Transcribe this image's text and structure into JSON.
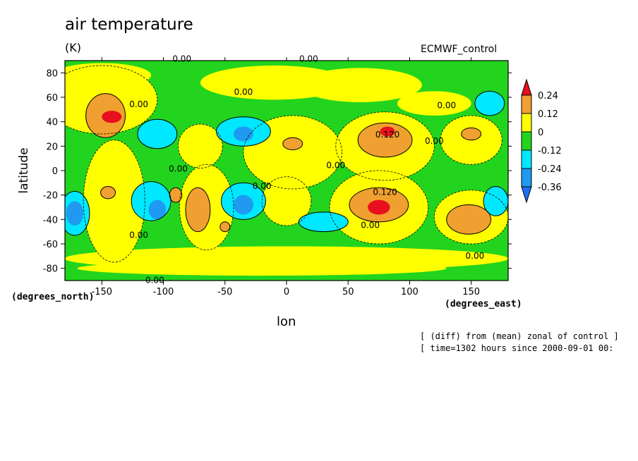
{
  "chart_data": {
    "type": "heatmap",
    "title": "air temperature",
    "units": "(K)",
    "model_label": "ECMWF_control",
    "xlabel": "lon",
    "xunits": "(degrees_east)",
    "ylabel": "latitude",
    "yunits": "(degrees_north)",
    "xlim": [
      -180,
      180
    ],
    "ylim": [
      -90,
      90
    ],
    "x_ticks": [
      "-150",
      "-100",
      "-50",
      "0",
      "50",
      "100",
      "150"
    ],
    "x_tick_values": [
      -150,
      -100,
      -50,
      0,
      50,
      100,
      150
    ],
    "y_ticks": [
      "80",
      "60",
      "40",
      "20",
      "0",
      "-20",
      "-40",
      "-60",
      "-80"
    ],
    "y_tick_values": [
      80,
      60,
      40,
      20,
      0,
      -20,
      -40,
      -60,
      -80
    ],
    "colorbar": {
      "labels": [
        "0.24",
        "0.12",
        "0",
        "-0.12",
        "-0.24",
        "-0.36"
      ],
      "colors": [
        "#e8101e",
        "#f0a030",
        "#ffff00",
        "#22d41e",
        "#00e8ff",
        "#1f9af0",
        "#1f6ff0"
      ]
    },
    "contour_labels": [
      {
        "text": "0.00",
        "lon": -120,
        "lat": 52
      },
      {
        "text": "0.00",
        "lon": -35,
        "lat": 62
      },
      {
        "text": "0.00",
        "lon": -88,
        "lat": -1
      },
      {
        "text": "0.00",
        "lon": 40,
        "lat": 2
      },
      {
        "text": "0.00",
        "lon": -20,
        "lat": -15
      },
      {
        "text": "0.120",
        "lon": 82,
        "lat": 27
      },
      {
        "text": "0.120",
        "lon": 80,
        "lat": -20
      },
      {
        "text": "0.00",
        "lon": 120,
        "lat": 22
      },
      {
        "text": "0.00",
        "lon": 130,
        "lat": 51
      },
      {
        "text": "0.00",
        "lon": -120,
        "lat": -55
      },
      {
        "text": "0.00",
        "lon": 68,
        "lat": -47
      },
      {
        "text": "0.00",
        "lon": 153,
        "lat": -72
      },
      {
        "text": "0.00",
        "lon": -85,
        "lat": 89
      },
      {
        "text": "0.00",
        "lon": 18,
        "lat": 89
      },
      {
        "text": "0.00",
        "lon": -107,
        "lat": -92
      }
    ],
    "anomaly_regions": [
      {
        "level": "0.24",
        "lon": -142,
        "lat": 44
      },
      {
        "level": "0.24",
        "lon": 82,
        "lat": 32
      },
      {
        "level": "0.24",
        "lon": 75,
        "lat": -30
      },
      {
        "level": "0.12",
        "lon": -147,
        "lat": 48
      },
      {
        "level": "0.12",
        "lon": 78,
        "lat": 25
      },
      {
        "level": "0.12",
        "lon": 78,
        "lat": -30
      },
      {
        "level": "0.12",
        "lon": 148,
        "lat": -40
      },
      {
        "level": "0.12",
        "lon": -72,
        "lat": -32
      },
      {
        "level": "0.12",
        "lon": 5,
        "lat": 22
      },
      {
        "level": "0.12",
        "lon": -145,
        "lat": -18
      },
      {
        "level": "-0.24",
        "lon": -35,
        "lat": 32
      },
      {
        "level": "-0.24",
        "lon": -105,
        "lat": 30
      },
      {
        "level": "-0.24",
        "lon": -110,
        "lat": -25
      },
      {
        "level": "-0.24",
        "lon": -35,
        "lat": -25
      },
      {
        "level": "-0.24",
        "lon": 30,
        "lat": -42
      },
      {
        "level": "-0.24",
        "lon": 165,
        "lat": 55
      },
      {
        "level": "-0.36",
        "lon": -172,
        "lat": -35
      },
      {
        "level": "-0.36",
        "lon": -105,
        "lat": -32
      }
    ]
  },
  "annotations": {
    "line1": "[ (diff) from (mean) zonal of control ]",
    "line2": "[ time=1302 hours since 2000-09-01 00:"
  }
}
